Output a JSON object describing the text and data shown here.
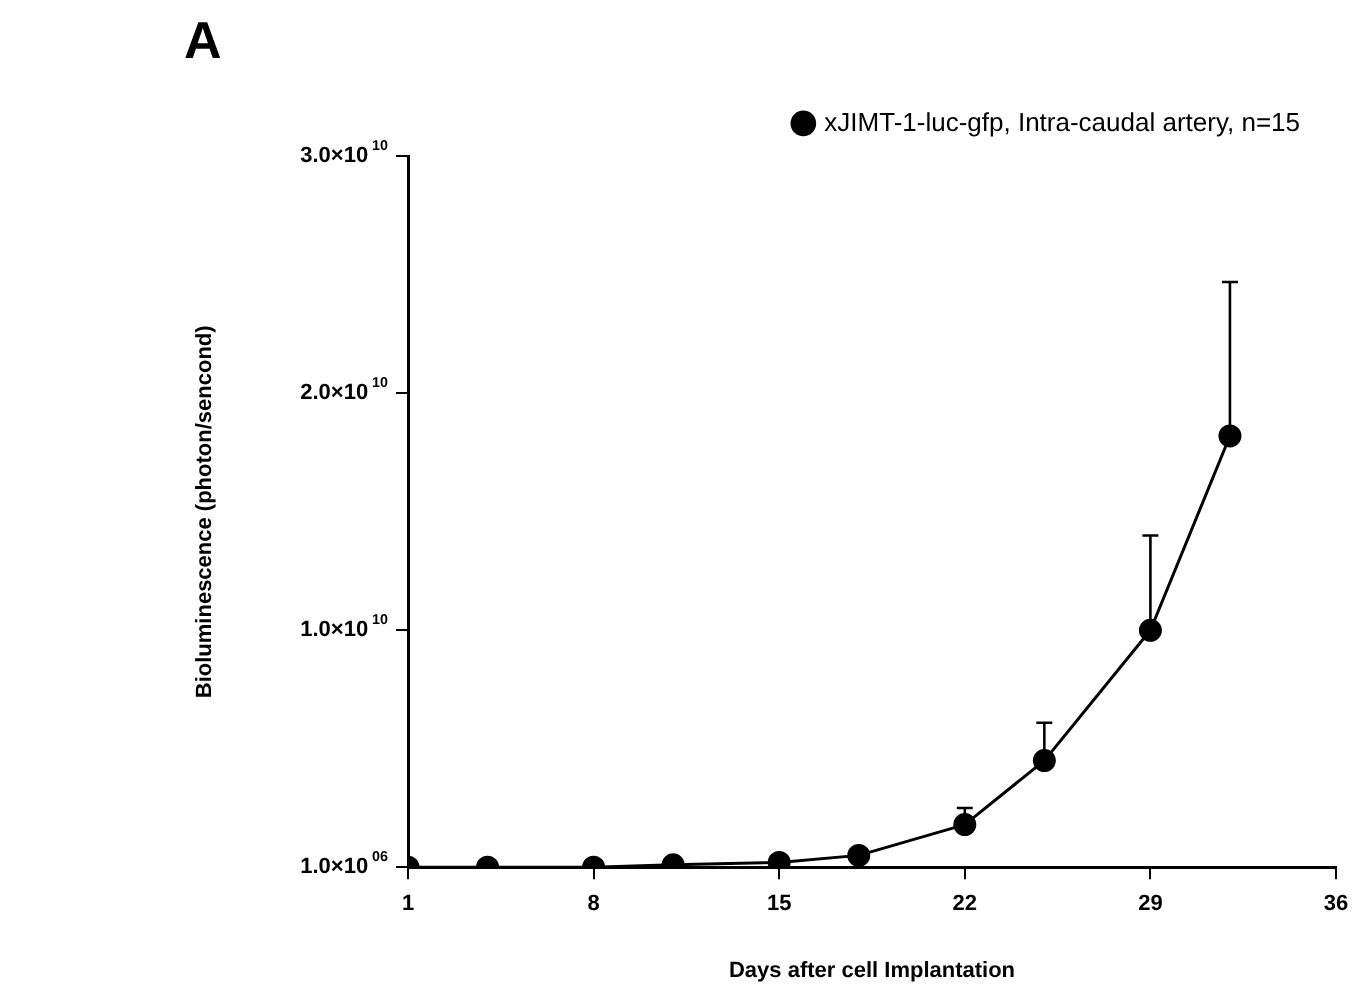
{
  "chart_data": {
    "type": "line",
    "title": "A",
    "xlabel": "Days after cell Implantation",
    "ylabel": "Bioluminescence (photon/sencond)",
    "x": [
      1,
      4,
      8,
      11,
      15,
      18,
      22,
      25,
      29,
      32
    ],
    "series": [
      {
        "name": "xJIMT-1-luc-gfp, Intra-caudal artery, n=15",
        "color": "#000000",
        "values": [
          1000000,
          1000000,
          1000000,
          100000000,
          200000000,
          500000000,
          1800000000,
          4500000000,
          10000000000,
          18200000000
        ],
        "errors": [
          null,
          null,
          null,
          null,
          null,
          null,
          [
            1800000000,
            2500000000
          ],
          [
            4500000000,
            6100000000
          ],
          [
            10000000000,
            14000000000
          ],
          [
            18200000000,
            24700000000
          ]
        ]
      }
    ],
    "xlim": [
      1,
      36
    ],
    "xticks": [
      1,
      8,
      15,
      22,
      29,
      36
    ],
    "ylim": [
      1000000,
      30000000000
    ],
    "yticks": [
      {
        "value": 1000000,
        "label": "1.0×10$^{06}$"
      },
      {
        "value": 10000000000,
        "label": "1.0×10$^{10}$"
      },
      {
        "value": 20000000000,
        "label": "2.0×10$^{10}$"
      },
      {
        "value": 30000000000,
        "label": "3.0×10$^{10}$"
      }
    ],
    "grid": false,
    "legend": "top right",
    "marker": "circle",
    "line_style": "solid"
  }
}
